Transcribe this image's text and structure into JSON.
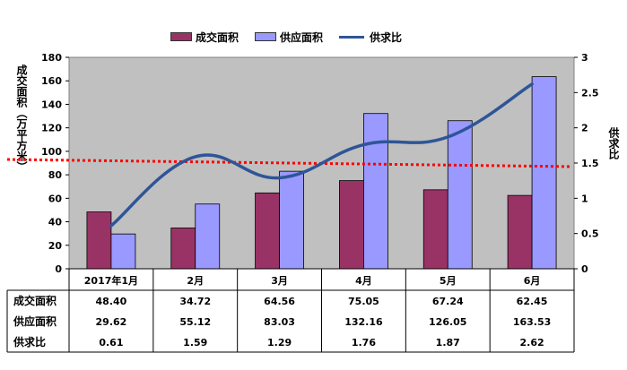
{
  "legend": {
    "deal_label": "成交面积",
    "supply_label": "供应面积",
    "ratio_label": "供求比"
  },
  "axes": {
    "left_label": "成交面积（万平方米）",
    "right_label": "供求比"
  },
  "colors": {
    "deal": "#993366",
    "supply": "#9999ff",
    "ratio_line": "#2f5597",
    "reference_line": "#ff0000",
    "plot_bg": "#c0c0c0"
  },
  "table": {
    "rows": [
      {
        "label": "成交面积",
        "values": [
          "48.40",
          "34.72",
          "64.56",
          "75.05",
          "67.24",
          "62.45"
        ]
      },
      {
        "label": "供应面积",
        "values": [
          "29.62",
          "55.12",
          "83.03",
          "132.16",
          "126.05",
          "163.53"
        ]
      },
      {
        "label": "供求比",
        "values": [
          "0.61",
          "1.59",
          "1.29",
          "1.76",
          "1.87",
          "2.62"
        ]
      }
    ]
  },
  "chart_data": {
    "type": "bar",
    "categories": [
      "2017年1月",
      "2月",
      "3月",
      "4月",
      "5月",
      "6月"
    ],
    "series": [
      {
        "name": "成交面积",
        "type": "bar",
        "axis": "left",
        "values": [
          48.4,
          34.72,
          64.56,
          75.05,
          67.24,
          62.45
        ]
      },
      {
        "name": "供应面积",
        "type": "bar",
        "axis": "left",
        "values": [
          29.62,
          55.12,
          83.03,
          132.16,
          126.05,
          163.53
        ]
      },
      {
        "name": "供求比",
        "type": "line",
        "axis": "right",
        "smooth": true,
        "values": [
          0.61,
          1.59,
          1.29,
          1.76,
          1.87,
          2.62
        ]
      }
    ],
    "reference_line": {
      "axis": "right",
      "value": 1.5,
      "style": "dotted"
    },
    "ylabel": "成交面积（万平方米）",
    "ylabel_right": "供求比",
    "ylim": [
      0,
      180
    ],
    "yticks": [
      0,
      20,
      40,
      60,
      80,
      100,
      120,
      140,
      160,
      180
    ],
    "ylim_right": [
      0,
      3
    ],
    "yticks_right": [
      "0",
      "0.5",
      "1",
      "1.5",
      "2",
      "2.5",
      "3"
    ],
    "legend_position": "top",
    "grid": false
  }
}
